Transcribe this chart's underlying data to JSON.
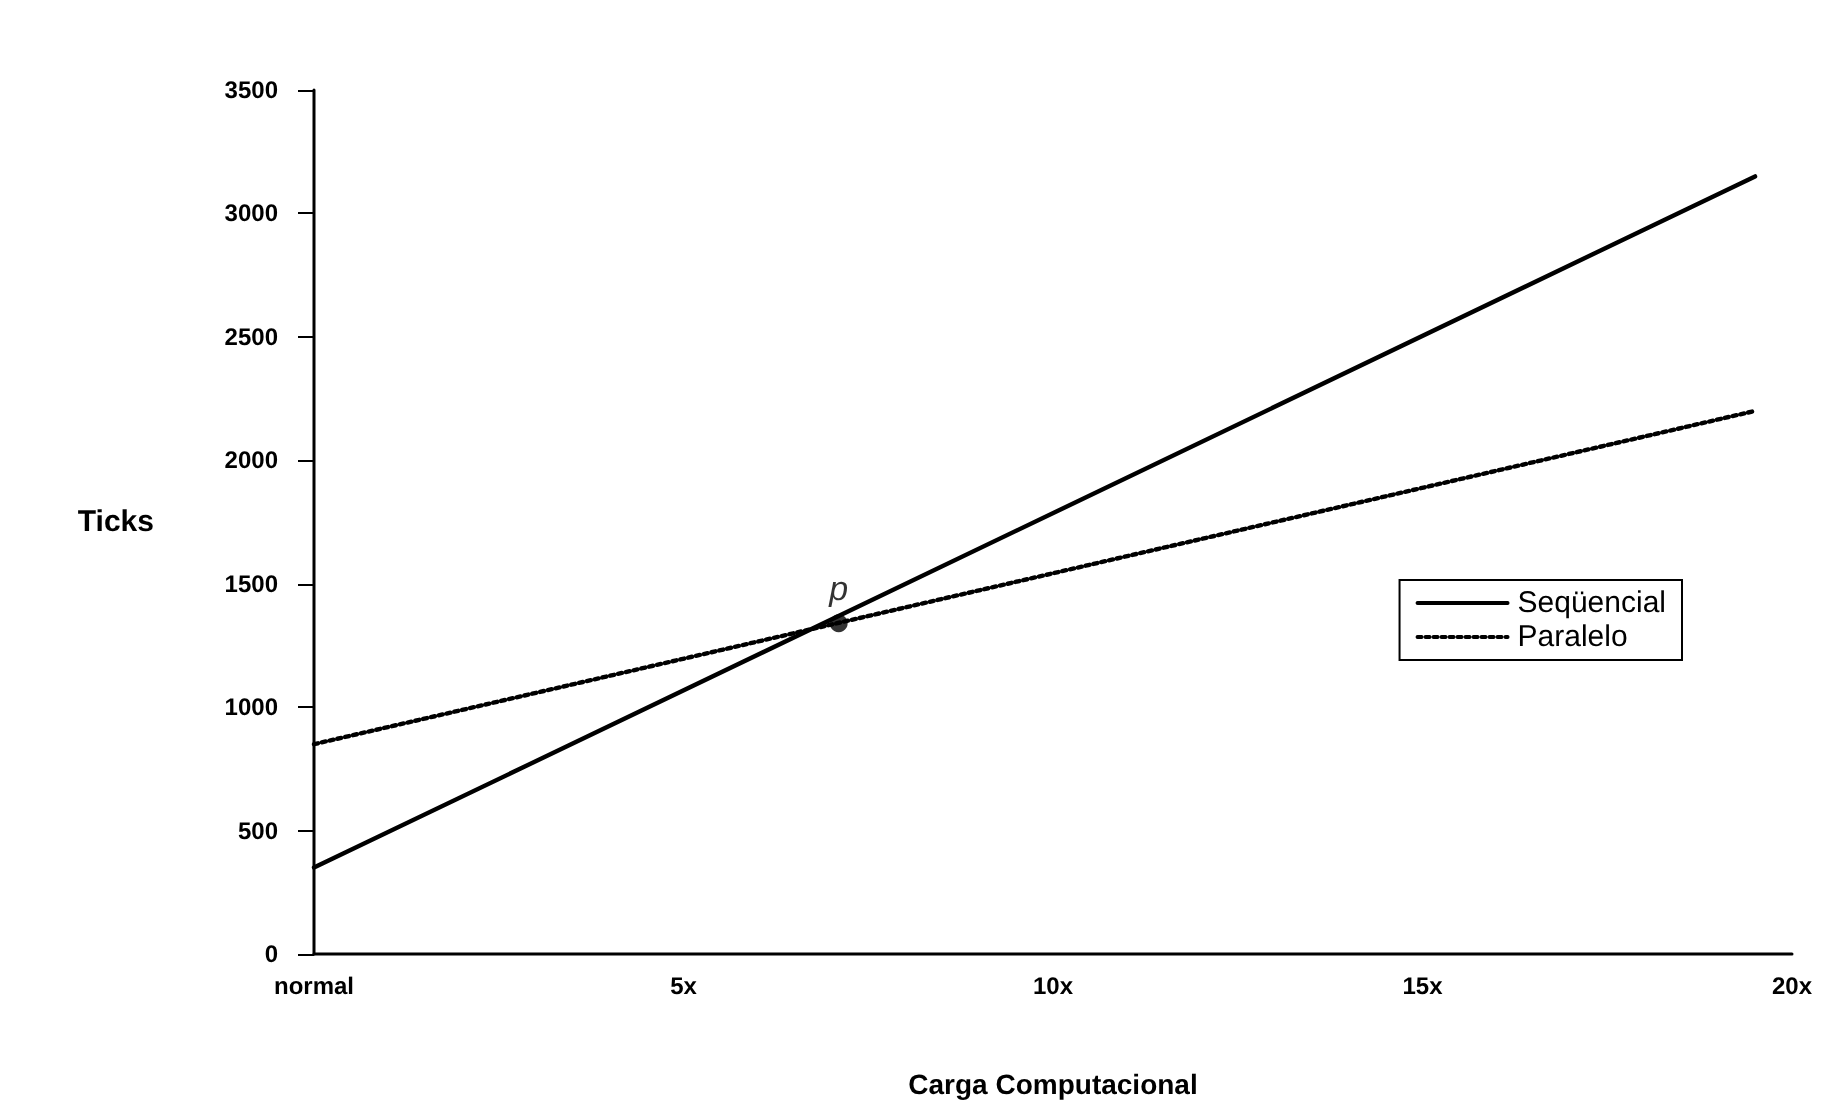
{
  "chart_data": {
    "type": "line",
    "xlabel": "Carga Computacional",
    "ylabel": "Ticks",
    "xlim": [
      0,
      20
    ],
    "xticks": [
      {
        "value": 0,
        "label": "normal"
      },
      {
        "value": 5,
        "label": "5x"
      },
      {
        "value": 10,
        "label": "10x"
      },
      {
        "value": 15,
        "label": "15x"
      },
      {
        "value": 20,
        "label": "20x"
      }
    ],
    "ylim": [
      0,
      3500
    ],
    "yticks": [
      0,
      500,
      1000,
      1500,
      2000,
      2500,
      3000,
      3500
    ],
    "grid": false,
    "legend": "right",
    "marker": "none",
    "series": [
      {
        "name": "Seqüencial",
        "color": "#000000",
        "x": [
          0,
          19.5
        ],
        "values": [
          350,
          3150
        ],
        "line_style": "solid"
      },
      {
        "name": "Paralelo",
        "color": "#000000",
        "x": [
          0,
          19.5
        ],
        "values": [
          850,
          2200
        ],
        "line_style": "dotted"
      },
      {
        "type": "scatter",
        "color": "#000000",
        "x": [
          7.1
        ],
        "values": [
          1340
        ],
        "marker": "circle"
      }
    ],
    "annotations": [
      {
        "text": "p",
        "x": 7.1,
        "y": 1340
      }
    ]
  }
}
